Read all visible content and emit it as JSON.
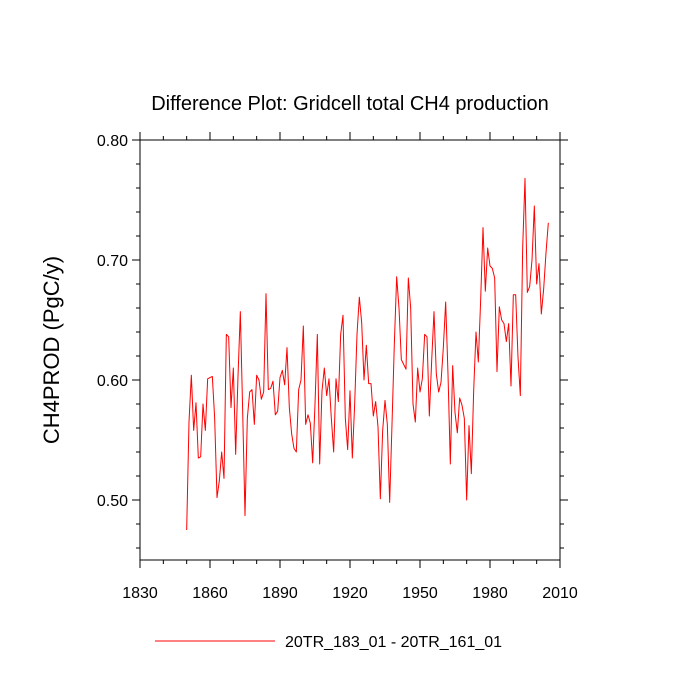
{
  "chart_data": {
    "type": "line",
    "title": "Difference Plot: Gridcell total CH4 production",
    "xlabel": "",
    "ylabel": "CH4PROD  (PgC/y)",
    "xlim": [
      1830,
      2010
    ],
    "ylim": [
      0.45,
      0.8
    ],
    "xticks": [
      1830,
      1860,
      1890,
      1920,
      1950,
      1980,
      2010
    ],
    "xtick_labels": [
      "1830",
      "1860",
      "1890",
      "1920",
      "1950",
      "1980",
      "2010"
    ],
    "yticks": [
      0.5,
      0.6,
      0.7,
      0.8
    ],
    "ytick_labels": [
      "0.50",
      "0.60",
      "0.70",
      "0.80"
    ],
    "grid": false,
    "legend_position": "bottom",
    "series": [
      {
        "name": "20TR_183_01 - 20TR_161_01",
        "color": "#ff0000",
        "x": [
          1850,
          1851,
          1852,
          1853,
          1854,
          1855,
          1856,
          1857,
          1858,
          1859,
          1860,
          1861,
          1862,
          1863,
          1864,
          1865,
          1866,
          1867,
          1868,
          1869,
          1870,
          1871,
          1872,
          1873,
          1874,
          1875,
          1876,
          1877,
          1878,
          1879,
          1880,
          1881,
          1882,
          1883,
          1884,
          1885,
          1886,
          1887,
          1888,
          1889,
          1890,
          1891,
          1892,
          1893,
          1894,
          1895,
          1896,
          1897,
          1898,
          1899,
          1900,
          1901,
          1902,
          1903,
          1904,
          1905,
          1906,
          1907,
          1908,
          1909,
          1910,
          1911,
          1912,
          1913,
          1914,
          1915,
          1916,
          1917,
          1918,
          1919,
          1920,
          1921,
          1922,
          1923,
          1924,
          1925,
          1926,
          1927,
          1928,
          1929,
          1930,
          1931,
          1932,
          1933,
          1934,
          1935,
          1936,
          1937,
          1938,
          1939,
          1940,
          1941,
          1942,
          1943,
          1944,
          1945,
          1946,
          1947,
          1948,
          1949,
          1950,
          1951,
          1952,
          1953,
          1954,
          1955,
          1956,
          1957,
          1958,
          1959,
          1960,
          1961,
          1962,
          1963,
          1964,
          1965,
          1966,
          1967,
          1968,
          1969,
          1970,
          1971,
          1972,
          1973,
          1974,
          1975,
          1976,
          1977,
          1978,
          1979,
          1980,
          1981,
          1982,
          1983,
          1984,
          1985,
          1986,
          1987,
          1988,
          1989,
          1990,
          1991,
          1992,
          1993,
          1994,
          1995,
          1996,
          1997,
          1998,
          1999,
          2000,
          2001,
          2002,
          2003,
          2004,
          2005
        ],
        "values": [
          0.475,
          0.565,
          0.604,
          0.558,
          0.581,
          0.535,
          0.536,
          0.58,
          0.558,
          0.601,
          0.602,
          0.603,
          0.568,
          0.502,
          0.516,
          0.54,
          0.518,
          0.638,
          0.636,
          0.577,
          0.61,
          0.538,
          0.603,
          0.657,
          0.574,
          0.487,
          0.568,
          0.59,
          0.592,
          0.563,
          0.604,
          0.6,
          0.584,
          0.59,
          0.672,
          0.592,
          0.593,
          0.599,
          0.571,
          0.574,
          0.602,
          0.608,
          0.596,
          0.627,
          0.577,
          0.555,
          0.543,
          0.54,
          0.592,
          0.6,
          0.645,
          0.563,
          0.571,
          0.564,
          0.531,
          0.58,
          0.638,
          0.53,
          0.591,
          0.61,
          0.587,
          0.601,
          0.568,
          0.54,
          0.601,
          0.582,
          0.638,
          0.654,
          0.568,
          0.542,
          0.591,
          0.535,
          0.58,
          0.638,
          0.669,
          0.648,
          0.6,
          0.629,
          0.597,
          0.597,
          0.57,
          0.582,
          0.561,
          0.501,
          0.558,
          0.583,
          0.563,
          0.498,
          0.563,
          0.63,
          0.686,
          0.66,
          0.617,
          0.613,
          0.609,
          0.685,
          0.66,
          0.58,
          0.565,
          0.61,
          0.59,
          0.601,
          0.638,
          0.636,
          0.57,
          0.616,
          0.657,
          0.605,
          0.59,
          0.598,
          0.627,
          0.665,
          0.605,
          0.53,
          0.612,
          0.573,
          0.556,
          0.585,
          0.579,
          0.568,
          0.5,
          0.562,
          0.522,
          0.591,
          0.64,
          0.615,
          0.667,
          0.727,
          0.674,
          0.71,
          0.695,
          0.693,
          0.685,
          0.607,
          0.661,
          0.65,
          0.647,
          0.632,
          0.647,
          0.595,
          0.671,
          0.671,
          0.619,
          0.587,
          0.71,
          0.768,
          0.673,
          0.678,
          0.7,
          0.745,
          0.68,
          0.697,
          0.655,
          0.676,
          0.706,
          0.731
        ]
      }
    ]
  }
}
